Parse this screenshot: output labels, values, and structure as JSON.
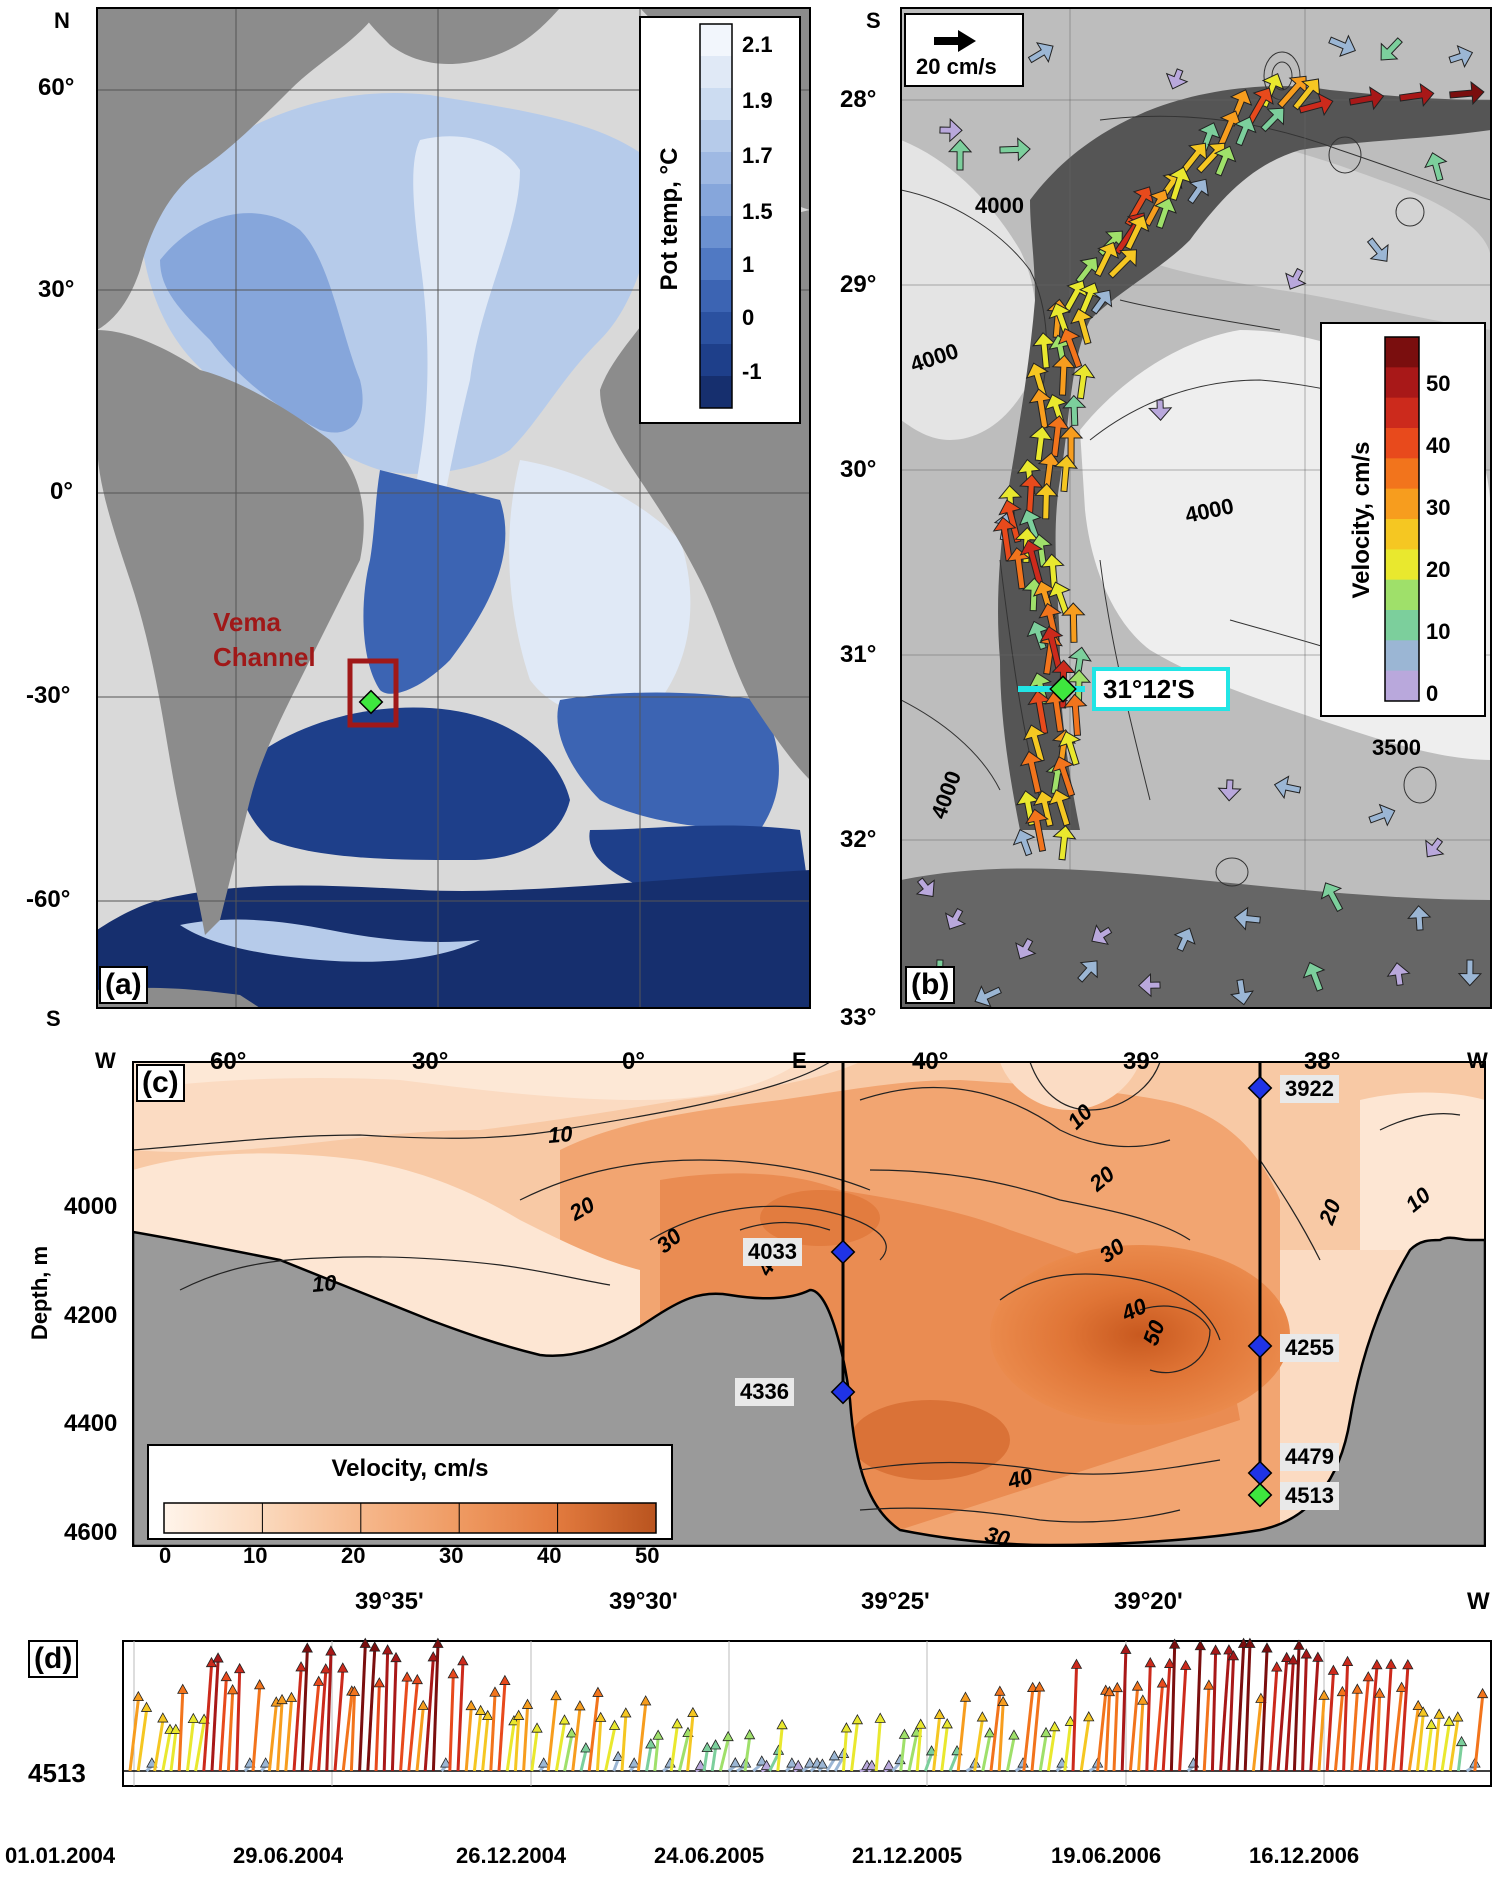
{
  "panel_a": {
    "label": "(a)",
    "lat_ticks": [
      "60°",
      "30°",
      "0°",
      "-30°",
      "-60°"
    ],
    "lon_ticks": [
      "60°",
      "30°",
      "0°"
    ],
    "corners": {
      "n": "N",
      "s": "S",
      "w": "W",
      "e": "E"
    },
    "region_label_line1": "Vema",
    "region_label_line2": "Channel",
    "colorbar": {
      "title": "Pot temp, °C",
      "ticks": [
        "2.1",
        "1.9",
        "1.7",
        "1.5",
        "1",
        "0",
        "-1"
      ],
      "colors": [
        "#f2f6fc",
        "#e0e9f6",
        "#ccdcf1",
        "#b6cbea",
        "#9fb9e3",
        "#86a6db",
        "#6b91d1",
        "#5079c3",
        "#3c64b3",
        "#2b51a0",
        "#1e3f8a",
        "#162f6e"
      ]
    },
    "colors": {
      "land": "#8c8c8c",
      "shelf": "#d9d9d9",
      "box": "#a01818"
    }
  },
  "panel_b": {
    "label": "(b)",
    "lat_ticks": [
      "28°",
      "29°",
      "30°",
      "31°",
      "32°",
      "33°"
    ],
    "lon_ticks": [
      "40°",
      "39°",
      "38°"
    ],
    "corners": {
      "s": "S",
      "w": "W"
    },
    "scale_label": "20 cm/s",
    "section_label": "31°12'S",
    "contour_labels": [
      "4000",
      "4000",
      "4000",
      "4000",
      "3500"
    ],
    "colorbar": {
      "title": "Velocity, cm/s",
      "ticks": [
        "50",
        "40",
        "30",
        "20",
        "10",
        "0"
      ],
      "colors": [
        "#7a0e0e",
        "#a81818",
        "#cc2a1c",
        "#e84a1c",
        "#f2741c",
        "#f79d1e",
        "#f5c722",
        "#e9e82e",
        "#9fe06a",
        "#7ccf9c",
        "#9bb6d4",
        "#b9a8dc"
      ]
    }
  },
  "panel_c": {
    "label": "(c)",
    "y_axis_label": "Depth, m",
    "y_ticks": [
      "4000",
      "4200",
      "4400",
      "4600"
    ],
    "x_ticks": [
      "39°35'",
      "39°30'",
      "39°25'",
      "39°20'"
    ],
    "x_end_label": "W",
    "contour_labels": [
      "10",
      "10",
      "20",
      "30",
      "40",
      "10",
      "20",
      "30",
      "40",
      "50",
      "10",
      "20",
      "40",
      "30"
    ],
    "mooring_depths": [
      "4033",
      "4336",
      "3922",
      "4255",
      "4479",
      "4513"
    ],
    "legend": {
      "title": "Velocity, cm/s",
      "ticks": [
        "0",
        "10",
        "20",
        "30",
        "40",
        "50"
      ]
    },
    "colors": {
      "bottom": "#9a9a9a",
      "marker": "#1f33e6",
      "marker_green": "#3ee63e"
    }
  },
  "panel_d": {
    "label": "(d)",
    "depth_label": "4513",
    "dates": [
      "01.01.2004",
      "29.06.2004",
      "26.12.2004",
      "24.06.2005",
      "21.12.2005",
      "19.06.2006",
      "16.12.2006"
    ]
  }
}
